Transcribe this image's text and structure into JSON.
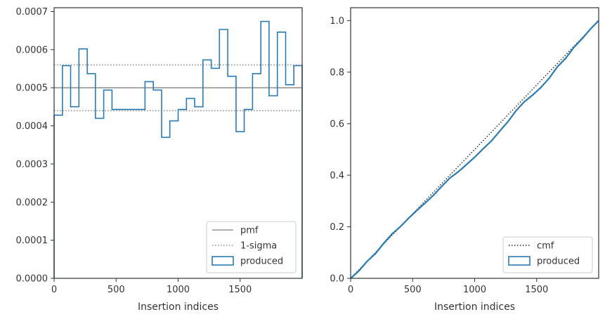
{
  "colors": {
    "step": "#2a7ab4",
    "pmf": "#808080",
    "sigma": "#808080",
    "cmf": "#222222",
    "frame": "#333333"
  },
  "chart_data": [
    {
      "type": "line",
      "xlabel": "Insertion indices",
      "ylabel": "",
      "xlim": [
        0,
        2000
      ],
      "ylim": [
        0,
        0.00071
      ],
      "xticks": [
        0,
        500,
        1000,
        1500
      ],
      "yticks": [
        0,
        0.0001,
        0.0002,
        0.0003,
        0.0004,
        0.0005,
        0.0006,
        0.0007
      ],
      "xtick_labels": [
        "0",
        "500",
        "1000",
        "1500"
      ],
      "ytick_labels": [
        "0.0000",
        "0.0001",
        "0.0002",
        "0.0003",
        "0.0004",
        "0.0005",
        "0.0006",
        "0.0007"
      ],
      "legend": {
        "location": "lower right",
        "entries": [
          "pmf",
          "1-sigma",
          "produced"
        ]
      },
      "series": [
        {
          "name": "pmf",
          "style": "solid",
          "value": 0.0005
        },
        {
          "name": "1-sigma",
          "style": "dotted",
          "values": [
            0.00044,
            0.00056
          ]
        },
        {
          "name": "produced",
          "style": "step",
          "bin_edges": [
            0,
            67,
            133,
            200,
            267,
            333,
            400,
            467,
            533,
            600,
            667,
            733,
            800,
            867,
            933,
            1000,
            1067,
            1133,
            1200,
            1267,
            1333,
            1400,
            1467,
            1533,
            1600,
            1667,
            1733,
            1800,
            1867,
            1933,
            2000
          ],
          "values": [
            0.000428,
            0.000558,
            0.00045,
            0.000602,
            0.000537,
            0.00042,
            0.000494,
            0.000443,
            0.000443,
            0.000443,
            0.000443,
            0.000516,
            0.000494,
            0.00037,
            0.000413,
            0.000443,
            0.000472,
            0.00045,
            0.000573,
            0.000551,
            0.000653,
            0.00053,
            0.000385,
            0.000443,
            0.000537,
            0.000674,
            0.000479,
            0.000646,
            0.000508,
            0.000558
          ]
        }
      ]
    },
    {
      "type": "line",
      "xlabel": "Insertion indices",
      "ylabel": "",
      "xlim": [
        0,
        2000
      ],
      "ylim": [
        0,
        1.05
      ],
      "xticks": [
        0,
        500,
        1000,
        1500
      ],
      "yticks": [
        0.0,
        0.2,
        0.4,
        0.6,
        0.8,
        1.0
      ],
      "xtick_labels": [
        "0",
        "500",
        "1000",
        "1500"
      ],
      "ytick_labels": [
        "0.0",
        "0.2",
        "0.4",
        "0.6",
        "0.8",
        "1.0"
      ],
      "legend": {
        "location": "lower right",
        "entries": [
          "cmf",
          "produced"
        ]
      },
      "series": [
        {
          "name": "cmf",
          "style": "dotted",
          "x": [
            0,
            2000
          ],
          "y": [
            0,
            1.0
          ]
        },
        {
          "name": "produced",
          "style": "solid",
          "x": [
            0,
            67,
            133,
            200,
            267,
            333,
            400,
            467,
            533,
            600,
            667,
            733,
            800,
            867,
            933,
            1000,
            1067,
            1133,
            1200,
            1267,
            1333,
            1400,
            1467,
            1533,
            1600,
            1667,
            1733,
            1800,
            1867,
            1933,
            2000
          ],
          "y": [
            0,
            0.029,
            0.066,
            0.096,
            0.136,
            0.172,
            0.2,
            0.233,
            0.263,
            0.292,
            0.322,
            0.356,
            0.389,
            0.413,
            0.441,
            0.47,
            0.502,
            0.532,
            0.57,
            0.607,
            0.65,
            0.685,
            0.711,
            0.74,
            0.776,
            0.821,
            0.853,
            0.896,
            0.93,
            0.967,
            1.0
          ]
        }
      ]
    }
  ]
}
